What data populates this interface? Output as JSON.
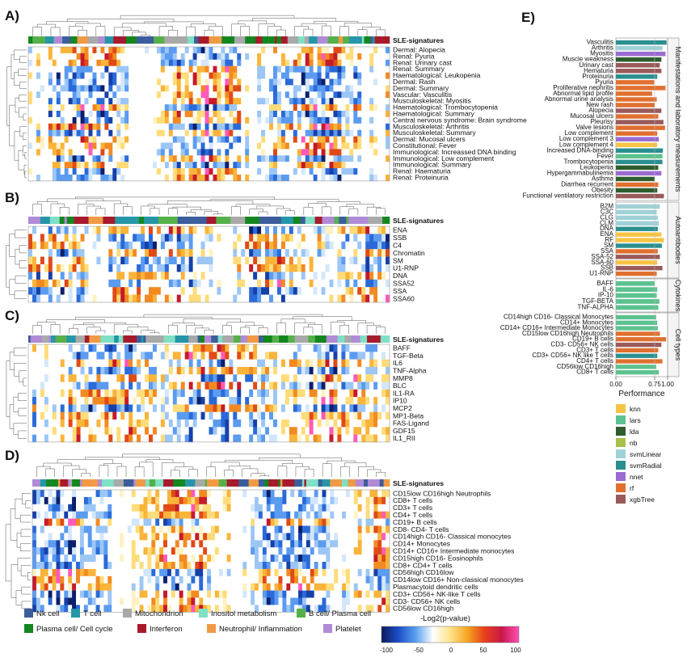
{
  "figure": {
    "signature_label": "SLE-signatures",
    "panels": [
      {
        "letter": "A)",
        "rows": [
          "Dermal: Alopecia",
          "Renal: Pyuria",
          "Renal: Urinary cast",
          "Renal: Summary",
          "Haematological: Leukopenia",
          "Dermal: Rash",
          "Dermal: Summary",
          "Vascular: Vasculitis",
          "Musculoskeletal: Myositis",
          "Haematological: Trombocytopenia",
          "Haematological: Summary",
          "Central nervous syndrome: Brain syndrome",
          "Musculoskeletal: Arthritis",
          "Musculoskeletal: Summary",
          "Dermal: Mucosal ulcers",
          "Constitutional: Fever",
          "Immunological: Increassed DNA binding",
          "Immunological: Low complement",
          "Immunological: Summary",
          "Renal: Haematuria",
          "Renal: Proteinuria"
        ]
      },
      {
        "letter": "B)",
        "rows": [
          "ENA",
          "SSB",
          "C4",
          "Chromatin",
          "SM",
          "U1-RNP",
          "DNA",
          "SSA52",
          "SSA",
          "SSA60"
        ]
      },
      {
        "letter": "C)",
        "rows": [
          "BAFF",
          "TGF-Beta",
          "IL6",
          "TNF-Alpha",
          "MMP8",
          "BLC",
          "IL1-RA",
          "IP10",
          "MCP2",
          "MP1-Beta",
          "FAS-Ligand",
          "GDF15",
          "IL1_RII"
        ]
      },
      {
        "letter": "D)",
        "rows": [
          "CD15low CD16high Neutrophils",
          "CD8+ T cells",
          "CD3+ T cells",
          "CD4+ T cells",
          "CD19+ B cells",
          "CD8- CD4- T cells",
          "CD14high CD16- Classical monocytes",
          "CD14+ Monocytes",
          "CD14+ CD16+ Intermediate monocytes",
          "CD15high CD16- Eosinophils",
          "CD8+ CD4+ T cells",
          "CD56high CD16low",
          "CD14low CD16+ Non-classical monocytes",
          "Plasmacytoid dendritic cells",
          "CD3+ CD56+ NK-like T cells",
          "CD3- CD56+ NK cells",
          "CD56low CD16high"
        ]
      }
    ],
    "signature_legend": [
      {
        "label": "Nk cell",
        "color": "#3b5d9c"
      },
      {
        "label": "T cell",
        "color": "#2596a8"
      },
      {
        "label": "Mitochondrion",
        "color": "#a9a9a9"
      },
      {
        "label": "Inositol metabolism",
        "color": "#7fe0c6"
      },
      {
        "label": "B cell/ Plasma cell",
        "color": "#56b04a"
      },
      {
        "label": "Plasma cell/ Cell cycle",
        "color": "#14861f"
      },
      {
        "label": "Interferon",
        "color": "#a71a2c"
      },
      {
        "label": "Neutrophil/ Inflammation",
        "color": "#f19a45"
      },
      {
        "label": "Platelet",
        "color": "#b08bd6"
      }
    ],
    "colorbar": {
      "title": "-Log2(p-value)",
      "ticks": [
        "-100",
        "-50",
        "0",
        "50",
        "100"
      ],
      "stops": [
        "#0b1a5c",
        "#1d4fc8",
        "#5aa0f0",
        "#ffffff",
        "#ffe28a",
        "#f5a623",
        "#e8401a",
        "#c9184a",
        "#ff4fb5"
      ]
    }
  },
  "performance": {
    "letter": "E)",
    "xlabel": "Performance",
    "xticks": [
      "0.00",
      "0.75",
      "1.00"
    ],
    "categories": [
      "Manifestations and laboratory measurements",
      "Autoantibodies",
      "Cytokines",
      "Cell types"
    ],
    "methods": [
      {
        "name": "knn",
        "color": "#f6c445"
      },
      {
        "name": "lars",
        "color": "#5cc28f"
      },
      {
        "name": "lda",
        "color": "#2e5d2e"
      },
      {
        "name": "nb",
        "color": "#a6c24a"
      },
      {
        "name": "svmLinear",
        "color": "#9fd1d6"
      },
      {
        "name": "svmRadial",
        "color": "#2a8f8f"
      },
      {
        "name": "nnet",
        "color": "#9b6bd1"
      },
      {
        "name": "rf",
        "color": "#e07030"
      },
      {
        "name": "xgbTree",
        "color": "#9a5a5a"
      }
    ],
    "chart_data": {
      "type": "bar",
      "xlim": [
        0,
        1
      ],
      "xlabel": "Performance",
      "groups": [
        {
          "category": "Manifestations and laboratory measurements",
          "bars": [
            {
              "label": "Vasculitis",
              "value": 0.98,
              "method": "svmRadial"
            },
            {
              "label": "Arthritis",
              "value": 0.9,
              "method": "svmLinear"
            },
            {
              "label": "Myositis",
              "value": 0.96,
              "method": "nnet"
            },
            {
              "label": "Muscle weakness",
              "value": 0.88,
              "method": "lda"
            },
            {
              "label": "Urinary cast",
              "value": 0.85,
              "method": "xgbTree"
            },
            {
              "label": "Hematuria",
              "value": 0.88,
              "method": "xgbTree"
            },
            {
              "label": "Proteinuria",
              "value": 0.8,
              "method": "svmRadial"
            },
            {
              "label": "Pyuria",
              "value": 0.74,
              "method": "rf"
            },
            {
              "label": "Proliferative nephritis",
              "value": 0.96,
              "method": "rf"
            },
            {
              "label": "Abnormal lipid profile",
              "value": 0.7,
              "method": "rf"
            },
            {
              "label": "Abnormal urine analysis",
              "value": 0.79,
              "method": "rf"
            },
            {
              "label": "New rash",
              "value": 0.75,
              "method": "rf"
            },
            {
              "label": "Alopecia",
              "value": 0.88,
              "method": "xgbTree"
            },
            {
              "label": "Mucosal ulcers",
              "value": 0.82,
              "method": "rf"
            },
            {
              "label": "Pleurisy",
              "value": 0.92,
              "method": "xgbTree"
            },
            {
              "label": "Valve lesions",
              "value": 0.95,
              "method": "rf"
            },
            {
              "label": "Low complement",
              "value": 0.8,
              "method": "rf"
            },
            {
              "label": "Low complement 3",
              "value": 0.83,
              "method": "nnet"
            },
            {
              "label": "Low complement 4",
              "value": 0.8,
              "method": "knn"
            },
            {
              "label": "Increased DNA-binding",
              "value": 0.91,
              "method": "svmRadial"
            },
            {
              "label": "Fever",
              "value": 0.9,
              "method": "lars"
            },
            {
              "label": "Trombocytopenia",
              "value": 0.9,
              "method": "svmRadial"
            },
            {
              "label": "Leukopenia",
              "value": 0.82,
              "method": "lda"
            },
            {
              "label": "Hypergammabulinemia",
              "value": 0.88,
              "method": "nnet"
            },
            {
              "label": "Asthma",
              "value": 0.75,
              "method": "lda"
            },
            {
              "label": "Diarrhea recurrent",
              "value": 0.82,
              "method": "rf"
            },
            {
              "label": "Obesity",
              "value": 0.8,
              "method": "lda"
            },
            {
              "label": "Functional ventilatory restriction",
              "value": 0.93,
              "method": "xgbTree"
            }
          ]
        },
        {
          "category": "Autoantibodies",
          "bars": [
            {
              "label": "B2M",
              "value": 0.85,
              "method": "svmLinear"
            },
            {
              "label": "C3C",
              "value": 0.79,
              "method": "svmLinear"
            },
            {
              "label": "CLG",
              "value": 0.81,
              "method": "svmLinear"
            },
            {
              "label": "CLM",
              "value": 0.83,
              "method": "svmLinear"
            },
            {
              "label": "DNA",
              "value": 0.81,
              "method": "svmRadial"
            },
            {
              "label": "ENA",
              "value": 0.88,
              "method": "knn"
            },
            {
              "label": "RF",
              "value": 0.93,
              "method": "knn"
            },
            {
              "label": "SM",
              "value": 0.89,
              "method": "svmRadial"
            },
            {
              "label": "SSA",
              "value": 0.81,
              "method": "rf"
            },
            {
              "label": "SSA-52",
              "value": 0.85,
              "method": "xgbTree"
            },
            {
              "label": "SSA-60",
              "value": 0.8,
              "method": "knn"
            },
            {
              "label": "SSB",
              "value": 0.9,
              "method": "xgbTree"
            },
            {
              "label": "U1-RNP",
              "value": 0.79,
              "method": "rf"
            }
          ]
        },
        {
          "category": "Cytokines",
          "bars": [
            {
              "label": "BAFF",
              "value": 0.75,
              "method": "lars"
            },
            {
              "label": "IL-6",
              "value": 0.8,
              "method": "lars"
            },
            {
              "label": "IP-10",
              "value": 0.79,
              "method": "lars"
            },
            {
              "label": "TGF-BETA",
              "value": 0.84,
              "method": "lars"
            },
            {
              "label": "TNF-ALPHA",
              "value": 0.82,
              "method": "lars"
            }
          ]
        },
        {
          "category": "Cell types",
          "bars": [
            {
              "label": "CD14high CD16- Classical Monocytes",
              "value": 0.78,
              "method": "lars"
            },
            {
              "label": "CD14+ Monocytes",
              "value": 0.8,
              "method": "lars"
            },
            {
              "label": "CD14+ CD16+ Intermediate Monocytes",
              "value": 0.81,
              "method": "lars"
            },
            {
              "label": "CD15low CD16high Neutrophils",
              "value": 0.85,
              "method": "rf"
            },
            {
              "label": "CD19+ B cells",
              "value": 0.97,
              "method": "rf"
            },
            {
              "label": "CD3- CD56+ NK cells",
              "value": 0.88,
              "method": "xgbTree"
            },
            {
              "label": "CD3+ T cells",
              "value": 0.82,
              "method": "rf"
            },
            {
              "label": "CD3+ CD56+ NK like T cells",
              "value": 0.8,
              "method": "svmRadial"
            },
            {
              "label": "CD4+ T cells",
              "value": 0.9,
              "method": "rf"
            },
            {
              "label": "CD56low CD16high",
              "value": 0.78,
              "method": "lars"
            },
            {
              "label": "CD8+ T cells",
              "value": 0.83,
              "method": "lars"
            }
          ]
        }
      ]
    }
  }
}
